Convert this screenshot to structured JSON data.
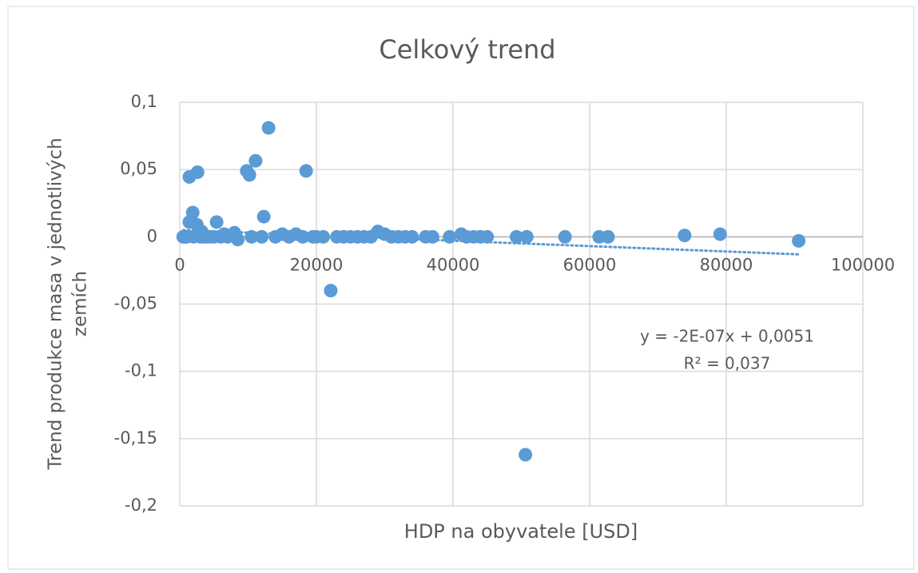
{
  "chart_data": {
    "type": "scatter",
    "title": "Celkový trend",
    "xlabel": "HDP na obyvatele [USD]",
    "ylabel": [
      "Trend produkce masa v jednotlivých",
      "zemích"
    ],
    "color": "#5b9bd5",
    "x": [
      1400,
      2600,
      1900,
      1400,
      2500,
      5400,
      9800,
      10200,
      11100,
      13000,
      12300,
      18500,
      22100,
      50600,
      90600,
      79100,
      73900,
      62700,
      61400,
      56400,
      50800,
      49300,
      45000,
      43000,
      41200,
      39500,
      37000,
      34000,
      33000,
      31000,
      30000,
      29000,
      27000,
      26000,
      25000,
      23000,
      21000,
      19500,
      17000,
      15000,
      14000,
      8000,
      8500,
      7000,
      6000,
      5000,
      4000,
      3500,
      3000,
      2000,
      1000,
      500,
      800,
      4500,
      10500,
      12000,
      16000,
      18000,
      20000,
      24000,
      28000,
      32000,
      36000,
      42000,
      44000,
      3200,
      6500
    ],
    "values": [
      0.0445,
      0.048,
      0.018,
      0.011,
      0.009,
      0.011,
      0.049,
      0.046,
      0.0565,
      0.081,
      0.015,
      0.049,
      -0.04,
      -0.162,
      -0.003,
      0.002,
      0.001,
      0,
      0,
      0,
      0,
      0,
      0,
      0,
      0.002,
      0,
      0,
      0,
      0,
      0,
      0.002,
      0.004,
      0,
      0,
      0,
      0,
      0,
      0,
      0.002,
      0.002,
      0,
      0.003,
      -0.002,
      0,
      0,
      0,
      0,
      0,
      0,
      0,
      0,
      0,
      0,
      0,
      0,
      0,
      0,
      0,
      0,
      0,
      0,
      0,
      0,
      0,
      0,
      0.004,
      0.002
    ],
    "xlim": [
      0,
      100000
    ],
    "xticks": [
      0,
      20000,
      40000,
      60000,
      80000,
      100000
    ],
    "ylim": [
      -0.2,
      0.1
    ],
    "yticks": [
      {
        "value": -0.2,
        "label": "-0,2"
      },
      {
        "value": -0.15,
        "label": "-0,15"
      },
      {
        "value": -0.1,
        "label": "-0,1"
      },
      {
        "value": -0.05,
        "label": "-0,05"
      },
      {
        "value": 0,
        "label": "0"
      },
      {
        "value": 0.05,
        "label": "0,05"
      },
      {
        "value": 0.1,
        "label": "0,1"
      }
    ],
    "grid": true,
    "trendline": {
      "equation": "y = -2E-07x + 0,0051",
      "r2_label": "R² = 0,037",
      "slope": -2e-07,
      "intercept": 0.0051
    }
  }
}
